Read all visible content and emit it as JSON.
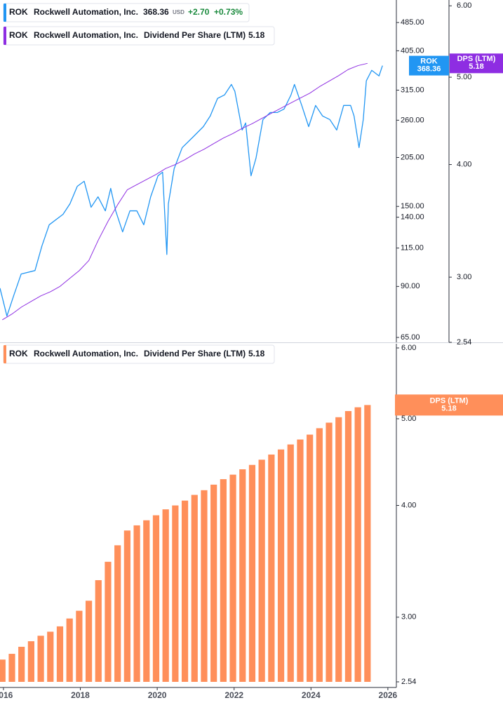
{
  "chart_data": [
    {
      "type": "line",
      "symbol": "ROK",
      "company": "Rockwell Automation, Inc.",
      "currency": "USD",
      "change": "+2.70",
      "change_pct": "+0.73%",
      "log_scale": true,
      "xlim": [
        2015.91,
        2026.13
      ],
      "ylim": [
        63,
        560
      ],
      "yticks": [
        {
          "value": 485,
          "label": "485.00"
        },
        {
          "value": 405,
          "label": "405.00"
        },
        {
          "value": 315,
          "label": "315.00"
        },
        {
          "value": 260,
          "label": "260.00"
        },
        {
          "value": 205,
          "label": "205.00"
        },
        {
          "value": 150,
          "label": "150.00"
        },
        {
          "value": 140,
          "label": "140.00"
        },
        {
          "value": 115,
          "label": "115.00"
        },
        {
          "value": 90,
          "label": "90.00"
        },
        {
          "value": 65,
          "label": "65.00"
        }
      ],
      "y2lim": [
        2.54,
        6.09
      ],
      "y2ticks": [
        {
          "value": 6,
          "label": "6.00"
        },
        {
          "value": 5,
          "label": "5.00"
        },
        {
          "value": 4,
          "label": "4.00"
        },
        {
          "value": 3,
          "label": "3.00"
        },
        2.54
      ],
      "series": [
        {
          "name": "ROK",
          "color": "#2196f3",
          "x": [
            2015.91,
            2016.09,
            2016.27,
            2016.46,
            2016.82,
            2017.0,
            2017.19,
            2017.55,
            2017.73,
            2017.92,
            2018.1,
            2018.28,
            2018.46,
            2018.65,
            2018.79,
            2018.92,
            2019.1,
            2019.29,
            2019.47,
            2019.65,
            2019.83,
            2020.02,
            2020.14,
            2020.25,
            2020.29,
            2020.44,
            2020.65,
            2020.93,
            2021.2,
            2021.38,
            2021.57,
            2021.75,
            2021.93,
            2022.02,
            2022.21,
            2022.3,
            2022.44,
            2022.57,
            2022.75,
            2022.94,
            2023.12,
            2023.3,
            2023.48,
            2023.57,
            2023.76,
            2023.94,
            2024.12,
            2024.3,
            2024.49,
            2024.67,
            2024.85,
            2025.03,
            2025.12,
            2025.25,
            2025.36,
            2025.44,
            2025.58,
            2025.77,
            2025.86
          ],
          "values": [
            89,
            74.5,
            85.1,
            97.4,
            99.6,
            116.5,
            133.4,
            142.6,
            152.5,
            170.5,
            176.1,
            149.2,
            159.5,
            145.8,
            168.3,
            145.8,
            127.5,
            145.8,
            145.8,
            133.4,
            159.5,
            182.4,
            186.6,
            110.4,
            152.5,
            190.8,
            218.3,
            233.5,
            249.6,
            267.2,
            298.9,
            305.5,
            326.7,
            312.6,
            244.2,
            255.5,
            182.4,
            204.2,
            261.1,
            273.1,
            273.1,
            279.2,
            305.5,
            326.7,
            285.7,
            249.6,
            285.7,
            267.2,
            261.1,
            244.2,
            285.7,
            285.7,
            267.2,
            218.3,
            261.1,
            334.3,
            357.5,
            344.9,
            368.36
          ]
        },
        {
          "name": "Dividend Per Share (LTM)",
          "badge": "DPS (LTM)",
          "axis": "y2",
          "color": "#8e2de2",
          "x": [
            2015.97,
            2016.22,
            2016.47,
            2016.72,
            2016.97,
            2017.22,
            2017.47,
            2017.72,
            2017.97,
            2018.22,
            2018.47,
            2018.72,
            2018.97,
            2019.22,
            2019.47,
            2019.72,
            2019.97,
            2020.22,
            2020.47,
            2020.72,
            2020.97,
            2021.22,
            2021.47,
            2021.72,
            2021.97,
            2022.22,
            2022.47,
            2022.72,
            2022.97,
            2023.22,
            2023.47,
            2023.72,
            2023.97,
            2024.22,
            2024.47,
            2024.72,
            2024.97,
            2025.22,
            2025.47
          ],
          "values": [
            2.69,
            2.73,
            2.78,
            2.82,
            2.86,
            2.89,
            2.93,
            2.99,
            3.05,
            3.13,
            3.3,
            3.46,
            3.61,
            3.75,
            3.8,
            3.85,
            3.9,
            3.96,
            4.0,
            4.05,
            4.11,
            4.16,
            4.22,
            4.28,
            4.33,
            4.39,
            4.44,
            4.5,
            4.56,
            4.62,
            4.68,
            4.74,
            4.8,
            4.88,
            4.95,
            5.02,
            5.1,
            5.15,
            5.18
          ]
        }
      ]
    },
    {
      "type": "bar",
      "symbol": "ROK",
      "company": "Rockwell Automation, Inc.",
      "log_scale": true,
      "xlim": [
        2015.91,
        2026.13
      ],
      "xticks": [
        2016,
        2018,
        2020,
        2022,
        2024,
        2026
      ],
      "ylim": [
        2.54,
        6
      ],
      "yticks": [
        {
          "value": 6,
          "label": "6.00"
        },
        {
          "value": 5,
          "label": "5.00"
        },
        {
          "value": 4,
          "label": "4.00"
        },
        {
          "value": 3,
          "label": "3.00"
        },
        2.54
      ],
      "series": [
        {
          "name": "Dividend Per Share (LTM)",
          "badge": "DPS (LTM)",
          "color": "#ff8f5a",
          "x": [
            2015.97,
            2016.22,
            2016.47,
            2016.72,
            2016.97,
            2017.22,
            2017.47,
            2017.72,
            2017.97,
            2018.22,
            2018.47,
            2018.72,
            2018.97,
            2019.22,
            2019.47,
            2019.72,
            2019.97,
            2020.22,
            2020.47,
            2020.72,
            2020.97,
            2021.22,
            2021.47,
            2021.72,
            2021.97,
            2022.22,
            2022.47,
            2022.72,
            2022.97,
            2023.22,
            2023.47,
            2023.72,
            2023.97,
            2024.22,
            2024.47,
            2024.72,
            2024.97,
            2025.22,
            2025.47
          ],
          "values": [
            2.69,
            2.73,
            2.78,
            2.82,
            2.86,
            2.89,
            2.93,
            2.99,
            3.05,
            3.13,
            3.3,
            3.46,
            3.61,
            3.75,
            3.8,
            3.85,
            3.9,
            3.96,
            4.0,
            4.05,
            4.11,
            4.16,
            4.22,
            4.28,
            4.33,
            4.39,
            4.44,
            4.5,
            4.56,
            4.62,
            4.68,
            4.74,
            4.8,
            4.88,
            4.95,
            5.02,
            5.1,
            5.15,
            5.18
          ]
        }
      ]
    }
  ]
}
